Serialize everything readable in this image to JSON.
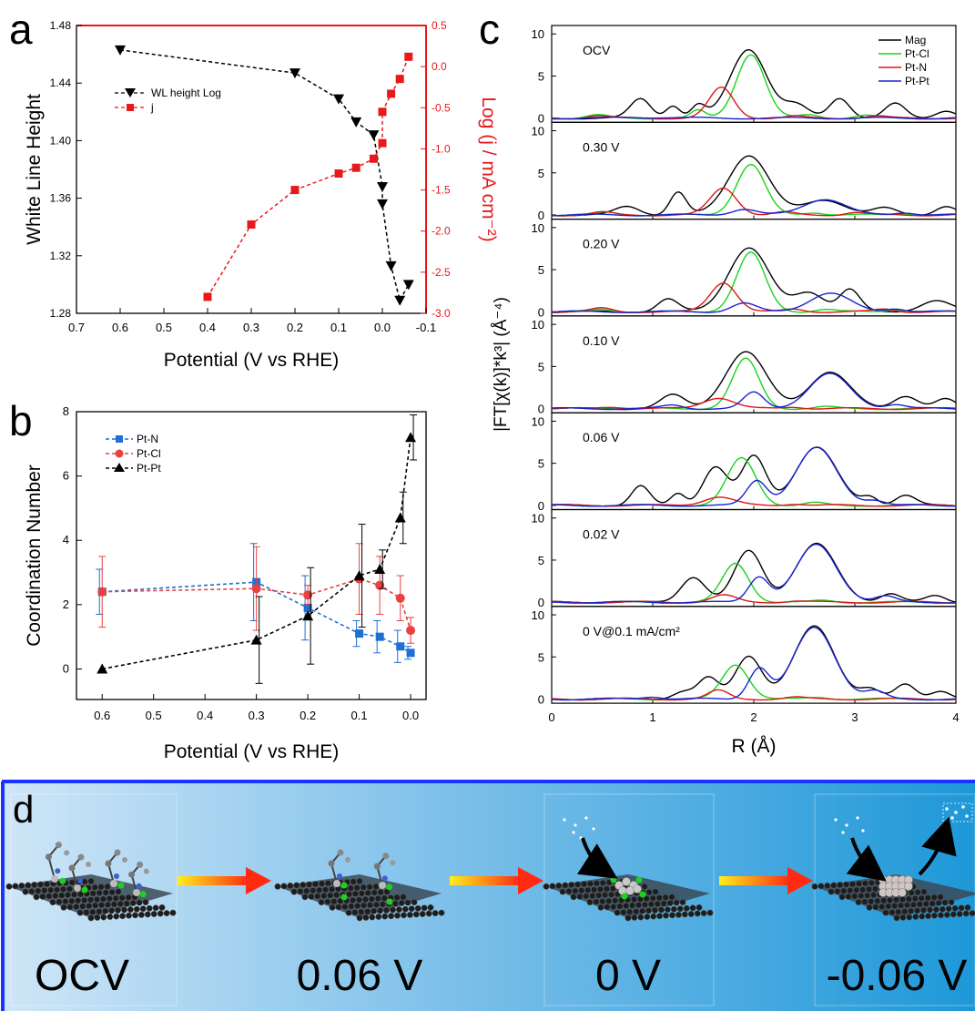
{
  "panels": {
    "a": {
      "letter": "a",
      "xlabel": "Potential (V vs RHE)",
      "ylabel_left": "White Line Height",
      "ylabel_right": "Log (j / mA cm⁻²)",
      "x_ticks": [
        "0.7",
        "0.6",
        "0.5",
        "0.4",
        "0.3",
        "0.2",
        "0.1",
        "0.0",
        "-0.1"
      ],
      "y_left_ticks": [
        "1.28",
        "1.32",
        "1.36",
        "1.40",
        "1.44",
        "1.48"
      ],
      "y_right_ticks": [
        "0.5",
        "0.0",
        "-0.5",
        "-1.0",
        "-1.5",
        "-2.0",
        "-2.5",
        "-3.0"
      ],
      "legend": [
        "WL height  Log",
        "j"
      ]
    },
    "b": {
      "letter": "b",
      "xlabel": "Potential (V vs RHE)",
      "ylabel": "Coordination Number",
      "x_ticks": [
        "0.6",
        "0.5",
        "0.4",
        "0.3",
        "0.2",
        "0.1",
        "0.0"
      ],
      "y_ticks": [
        "0",
        "2",
        "4",
        "6",
        "8"
      ],
      "legend": [
        "Pt-N",
        "Pt-Cl",
        "Pt-Pt"
      ]
    },
    "c": {
      "letter": "c",
      "xlabel": "R (Å)",
      "ylabel": "|FT[χ(k)]*k³| (Å⁻⁴)",
      "x_ticks": [
        "0",
        "1",
        "2",
        "3",
        "4"
      ],
      "y_ticks": [
        "0",
        "5",
        "10"
      ],
      "legend": [
        "Mag",
        "Pt-Cl",
        "Pt-N",
        "Pt-Pt"
      ],
      "labels": [
        "OCV",
        "0.30 V",
        "0.20 V",
        "0.10 V",
        "0.06 V",
        "0.02 V",
        "0 V@0.1 mA/cm²"
      ]
    },
    "d": {
      "letter": "d",
      "stages": [
        "OCV",
        "0.06 V",
        "0 V",
        "-0.06 V"
      ]
    }
  },
  "colors": {
    "wl": "#000000",
    "j": "#e8191b",
    "ptn": "#1f6fd4",
    "ptcl": "#e84141",
    "ptpt": "#000000",
    "mag": "#000000",
    "fit_ptcl": "#19d419",
    "fit_ptn": "#e01515",
    "fit_ptpt": "#1a22d0",
    "frame_d": "#1a33ff"
  },
  "chart_data": [
    {
      "panel": "a",
      "type": "line",
      "xlim": [
        0.7,
        -0.1
      ],
      "ylim_left": [
        1.28,
        1.48
      ],
      "ylim_right": [
        -3.0,
        0.5
      ],
      "series": [
        {
          "name": "WL height  Log",
          "axis": "left",
          "marker": "triangle-down",
          "x": [
            0.6,
            0.2,
            0.1,
            0.06,
            0.02,
            0.0,
            0.0,
            -0.02,
            -0.04,
            -0.06
          ],
          "y": [
            1.463,
            1.447,
            1.429,
            1.413,
            1.404,
            1.368,
            1.356,
            1.313,
            1.289,
            1.3
          ]
        },
        {
          "name": "j",
          "axis": "right",
          "marker": "square",
          "x": [
            0.4,
            0.3,
            0.2,
            0.1,
            0.06,
            0.02,
            0.0,
            0.0,
            -0.02,
            -0.04,
            -0.06
          ],
          "y": [
            -2.8,
            -1.92,
            -1.5,
            -1.3,
            -1.23,
            -1.12,
            -0.93,
            -0.55,
            -0.33,
            -0.15,
            0.12
          ]
        }
      ]
    },
    {
      "panel": "b",
      "type": "line",
      "xlim": [
        0.65,
        -0.03
      ],
      "ylim": [
        -0.95,
        8
      ],
      "series": [
        {
          "name": "Pt-N",
          "marker": "square",
          "x": [
            0.6,
            0.3,
            0.2,
            0.1,
            0.06,
            0.02,
            0.0
          ],
          "y": [
            2.4,
            2.7,
            1.9,
            1.1,
            1.0,
            0.7,
            0.5
          ],
          "err": [
            0.7,
            1.2,
            1.0,
            0.4,
            0.5,
            0.5,
            0.2
          ]
        },
        {
          "name": "Pt-Cl",
          "marker": "circle",
          "x": [
            0.6,
            0.3,
            0.2,
            0.1,
            0.06,
            0.02,
            0.0
          ],
          "y": [
            2.4,
            2.5,
            2.3,
            2.8,
            2.6,
            2.2,
            1.2
          ],
          "err": [
            1.1,
            1.3,
            0.3,
            1.1,
            0.9,
            0.7,
            0.4
          ]
        },
        {
          "name": "Pt-Pt",
          "marker": "triangle-up",
          "x": [
            0.6,
            0.3,
            0.2,
            0.1,
            0.06,
            0.02,
            0.0
          ],
          "y": [
            0.0,
            0.9,
            1.65,
            2.9,
            3.1,
            4.7,
            7.2
          ],
          "err": [
            0.0,
            1.35,
            1.5,
            1.6,
            0.6,
            0.8,
            0.7
          ]
        }
      ]
    },
    {
      "panel": "c",
      "type": "line",
      "xlim": [
        0,
        4
      ],
      "ylim_each": [
        -0.5,
        11
      ],
      "subplots": [
        {
          "label": "OCV",
          "peaks": {
            "mag": [
              [
                0.88,
                2.3,
                0.1
              ],
              [
                1.2,
                1.5,
                0.07
              ],
              [
                1.45,
                1.5,
                0.07
              ],
              [
                1.95,
                8.2,
                0.18
              ],
              [
                2.42,
                1.5,
                0.12
              ],
              [
                2.85,
                2.4,
                0.1
              ],
              [
                3.4,
                1.7,
                0.1
              ],
              [
                3.9,
                0.9,
                0.1
              ]
            ],
            "ptcl": [
              [
                0.45,
                0.35,
                0.1
              ],
              [
                1.45,
                0.9,
                0.07
              ],
              [
                1.97,
                7.6,
                0.14
              ],
              [
                2.55,
                0.4,
                0.1
              ],
              [
                3.1,
                0.3,
                0.1
              ]
            ],
            "ptn": [
              [
                0.45,
                0.3,
                0.1
              ],
              [
                1.68,
                3.6,
                0.12
              ],
              [
                2.4,
                0.2,
                0.1
              ],
              [
                3.2,
                0.25,
                0.1
              ]
            ],
            "ptpt": [
              [
                1.0,
                0.1,
                0.2
              ]
            ]
          }
        },
        {
          "label": "0.30 V",
          "peaks": {
            "mag": [
              [
                0.75,
                1.0,
                0.12
              ],
              [
                1.25,
                2.7,
                0.08
              ],
              [
                1.95,
                7.1,
                0.2
              ],
              [
                2.7,
                1.8,
                0.2
              ],
              [
                3.3,
                0.8,
                0.12
              ],
              [
                3.9,
                1.0,
                0.1
              ]
            ],
            "ptcl": [
              [
                0.55,
                0.3,
                0.1
              ],
              [
                1.97,
                6.0,
                0.14
              ],
              [
                2.6,
                0.3,
                0.1
              ],
              [
                3.5,
                0.2,
                0.1
              ]
            ],
            "ptn": [
              [
                0.5,
                0.3,
                0.1
              ],
              [
                1.7,
                3.2,
                0.13
              ],
              [
                2.3,
                0.3,
                0.1
              ],
              [
                3.0,
                0.3,
                0.1
              ]
            ],
            "ptpt": [
              [
                1.9,
                0.7,
                0.12
              ],
              [
                2.7,
                1.9,
                0.2
              ],
              [
                3.5,
                0.3,
                0.1
              ]
            ]
          }
        },
        {
          "label": "0.20 V",
          "peaks": {
            "mag": [
              [
                1.15,
                1.5,
                0.1
              ],
              [
                1.95,
                7.6,
                0.2
              ],
              [
                2.55,
                2.3,
                0.15
              ],
              [
                2.95,
                2.6,
                0.1
              ],
              [
                3.8,
                1.3,
                0.15
              ]
            ],
            "ptcl": [
              [
                0.5,
                0.3,
                0.1
              ],
              [
                1.97,
                7.0,
                0.14
              ],
              [
                2.7,
                0.3,
                0.1
              ],
              [
                3.4,
                0.3,
                0.1
              ]
            ],
            "ptn": [
              [
                0.5,
                0.4,
                0.1
              ],
              [
                1.7,
                3.5,
                0.13
              ],
              [
                2.4,
                0.3,
                0.1
              ],
              [
                3.3,
                0.3,
                0.1
              ]
            ],
            "ptpt": [
              [
                1.9,
                1.0,
                0.12
              ],
              [
                2.75,
                2.2,
                0.2
              ],
              [
                3.4,
                0.4,
                0.1
              ]
            ]
          }
        },
        {
          "label": "0.10 V",
          "peaks": {
            "mag": [
              [
                1.2,
                1.6,
                0.12
              ],
              [
                1.92,
                6.7,
                0.2
              ],
              [
                2.75,
                4.3,
                0.2
              ],
              [
                3.5,
                1.5,
                0.12
              ],
              [
                3.9,
                1.1,
                0.1
              ]
            ],
            "ptcl": [
              [
                0.6,
                0.2,
                0.1
              ],
              [
                1.92,
                5.9,
                0.13
              ],
              [
                2.7,
                0.2,
                0.1
              ]
            ],
            "ptn": [
              [
                0.6,
                0.2,
                0.1
              ],
              [
                1.65,
                1.3,
                0.15
              ],
              [
                2.4,
                0.2,
                0.1
              ]
            ],
            "ptpt": [
              [
                1.2,
                0.4,
                0.1
              ],
              [
                2.0,
                1.9,
                0.1
              ],
              [
                2.75,
                4.1,
                0.2
              ],
              [
                3.4,
                0.5,
                0.1
              ]
            ]
          }
        },
        {
          "label": "0.06 V",
          "peaks": {
            "mag": [
              [
                0.88,
                2.3,
                0.09
              ],
              [
                1.25,
                1.4,
                0.07
              ],
              [
                1.62,
                4.6,
                0.12
              ],
              [
                2.0,
                5.8,
                0.12
              ],
              [
                2.62,
                6.9,
                0.2
              ],
              [
                3.15,
                1.0,
                0.08
              ],
              [
                3.5,
                1.2,
                0.1
              ]
            ],
            "ptcl": [
              [
                1.88,
                5.6,
                0.14
              ],
              [
                2.6,
                0.3,
                0.1
              ]
            ],
            "ptn": [
              [
                1.65,
                1.0,
                0.15
              ],
              [
                2.4,
                0.2,
                0.1
              ]
            ],
            "ptpt": [
              [
                2.03,
                2.9,
                0.1
              ],
              [
                2.62,
                6.8,
                0.2
              ],
              [
                3.2,
                0.6,
                0.1
              ]
            ]
          }
        },
        {
          "label": "0.02 V",
          "peaks": {
            "mag": [
              [
                1.4,
                3.0,
                0.12
              ],
              [
                1.95,
                6.1,
                0.14
              ],
              [
                2.62,
                6.9,
                0.2
              ],
              [
                3.35,
                1.0,
                0.1
              ],
              [
                3.8,
                0.8,
                0.1
              ]
            ],
            "ptcl": [
              [
                1.82,
                4.6,
                0.13
              ],
              [
                2.7,
                0.2,
                0.1
              ]
            ],
            "ptn": [
              [
                1.7,
                0.8,
                0.12
              ],
              [
                2.4,
                0.15,
                0.1
              ]
            ],
            "ptpt": [
              [
                2.05,
                3.0,
                0.1
              ],
              [
                2.62,
                6.8,
                0.2
              ],
              [
                3.3,
                0.7,
                0.1
              ]
            ]
          }
        },
        {
          "label": "0 V@0.1 mA/cm²",
          "peaks": {
            "mag": [
              [
                1.3,
                0.9,
                0.1
              ],
              [
                1.55,
                2.5,
                0.1
              ],
              [
                1.95,
                5.1,
                0.13
              ],
              [
                2.6,
                8.6,
                0.2
              ],
              [
                3.15,
                1.2,
                0.1
              ],
              [
                3.5,
                1.7,
                0.1
              ],
              [
                3.85,
                1.0,
                0.1
              ]
            ],
            "ptcl": [
              [
                1.82,
                4.1,
                0.13
              ],
              [
                2.65,
                0.2,
                0.1
              ]
            ],
            "ptn": [
              [
                1.65,
                1.0,
                0.1
              ],
              [
                2.4,
                0.2,
                0.1
              ]
            ],
            "ptpt": [
              [
                1.0,
                0.3,
                0.1
              ],
              [
                2.05,
                3.6,
                0.1
              ],
              [
                2.6,
                8.5,
                0.2
              ],
              [
                3.2,
                0.9,
                0.1
              ]
            ]
          }
        }
      ]
    }
  ]
}
